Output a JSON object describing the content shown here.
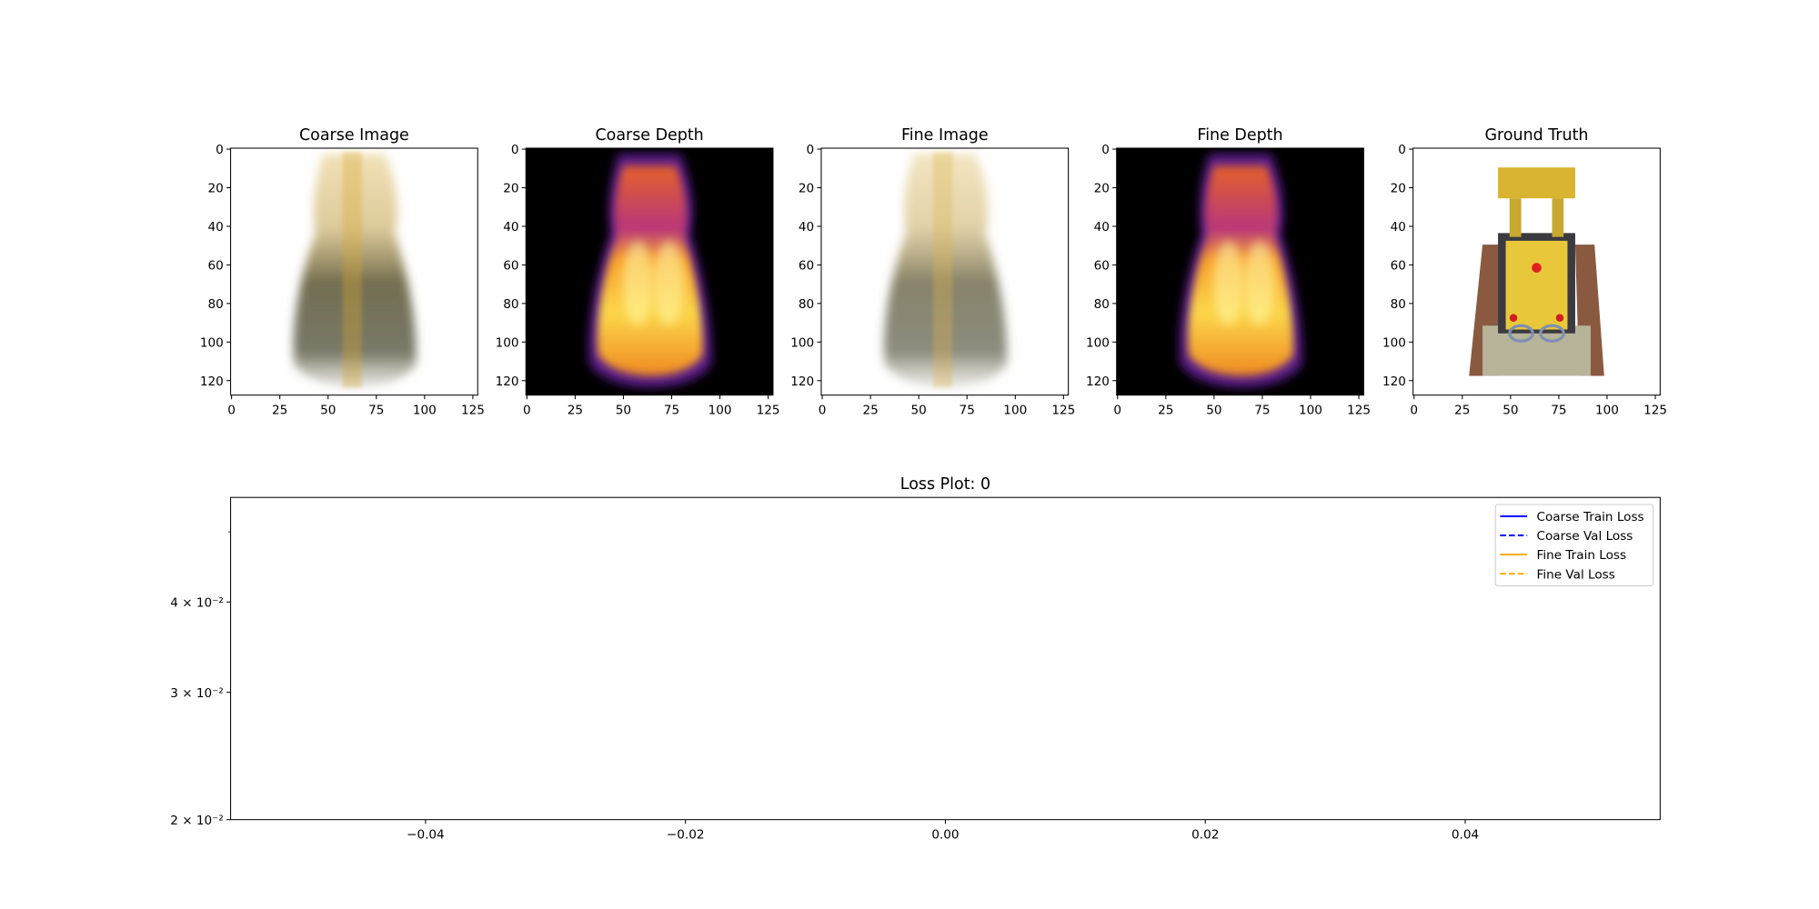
{
  "chart_data": [
    {
      "type": "image",
      "title": "Coarse Image",
      "xlim": [
        -0.5,
        127.5
      ],
      "ylim": [
        127.5,
        -0.5
      ],
      "xticks": [
        0,
        25,
        50,
        75,
        100,
        125
      ],
      "yticks": [
        0,
        20,
        40,
        60,
        80,
        100,
        120
      ]
    },
    {
      "type": "image",
      "title": "Coarse Depth",
      "xlim": [
        -0.5,
        127.5
      ],
      "ylim": [
        127.5,
        -0.5
      ],
      "xticks": [
        0,
        25,
        50,
        75,
        100,
        125
      ],
      "yticks": [
        0,
        20,
        40,
        60,
        80,
        100,
        120
      ]
    },
    {
      "type": "image",
      "title": "Fine Image",
      "xlim": [
        -0.5,
        127.5
      ],
      "ylim": [
        127.5,
        -0.5
      ],
      "xticks": [
        0,
        25,
        50,
        75,
        100,
        125
      ],
      "yticks": [
        0,
        20,
        40,
        60,
        80,
        100,
        120
      ]
    },
    {
      "type": "image",
      "title": "Fine Depth",
      "xlim": [
        -0.5,
        127.5
      ],
      "ylim": [
        127.5,
        -0.5
      ],
      "xticks": [
        0,
        25,
        50,
        75,
        100,
        125
      ],
      "yticks": [
        0,
        20,
        40,
        60,
        80,
        100,
        120
      ]
    },
    {
      "type": "image",
      "title": "Ground Truth",
      "xlim": [
        -0.5,
        127.5
      ],
      "ylim": [
        127.5,
        -0.5
      ],
      "xticks": [
        0,
        25,
        50,
        75,
        100,
        125
      ],
      "yticks": [
        0,
        20,
        40,
        60,
        80,
        100,
        120
      ]
    },
    {
      "type": "line",
      "title": "Loss Plot: 0",
      "log_y": true,
      "legend": "upper right",
      "xlim": [
        -0.055,
        0.055
      ],
      "xticks": [
        {
          "value": -0.04,
          "label": "−0.04"
        },
        {
          "value": -0.02,
          "label": "−0.02"
        },
        {
          "value": 0,
          "label": "0.00"
        },
        {
          "value": 0.02,
          "label": "0.02"
        },
        {
          "value": 0.04,
          "label": "0.04"
        }
      ],
      "ylim": [
        0.02,
        0.0558
      ],
      "yticks": [
        {
          "value": 0.02,
          "label": "2 × 10⁻²"
        },
        {
          "value": 0.03,
          "label": "3 × 10⁻²"
        },
        {
          "value": 0.04,
          "label": "4 × 10⁻²"
        }
      ],
      "yminorticks": [
        0.05
      ],
      "x": [],
      "series": [
        {
          "name": "Coarse Train Loss",
          "color": "#0000ff",
          "linestyle": "solid",
          "values": []
        },
        {
          "name": "Coarse Val Loss",
          "color": "#0000ff",
          "linestyle": "dashed",
          "values": []
        },
        {
          "name": "Fine Train Loss",
          "color": "#ffa500",
          "linestyle": "solid",
          "values": []
        },
        {
          "name": "Fine Val Loss",
          "color": "#ffa500",
          "linestyle": "dashed",
          "values": []
        }
      ]
    }
  ]
}
